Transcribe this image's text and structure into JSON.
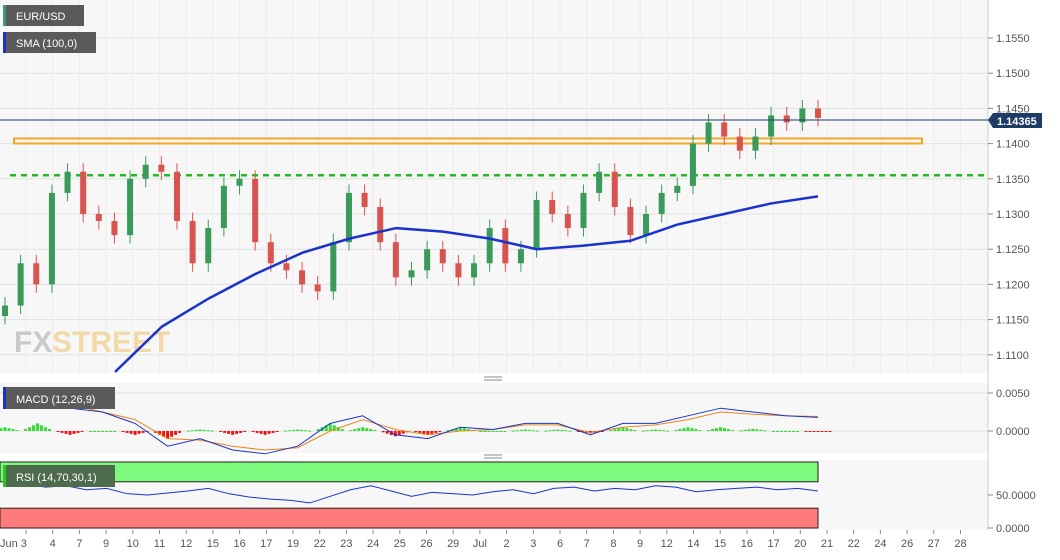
{
  "instrument": {
    "symbol": "EUR/USD",
    "current_price": "1.14365"
  },
  "indicators": {
    "sma_label": "SMA (100,0)",
    "macd_label": "MACD (12,26,9)",
    "rsi_label": "RSI (14,70,30,1)"
  },
  "watermark": {
    "text_fx": "FX",
    "text_street": "STREET"
  },
  "colors": {
    "candle_up": "#3a9a5a",
    "candle_down": "#d9534f",
    "sma": "#1a33cc",
    "resistance": "#f5a623",
    "support": "#22bb22",
    "macd_line": "#1a33cc",
    "signal_line": "#e8891c",
    "hist_pos": "#33dd33",
    "hist_neg": "#ee1111",
    "rsi_line": "#1a33cc",
    "rsi_overbought": "#7dfa7d",
    "rsi_oversold": "#ff7b7b",
    "price_tag": "#1e3a66"
  },
  "chart_data": [
    {
      "type": "candlestick",
      "pane": "price",
      "ylim": [
        1.1075,
        1.159
      ],
      "y_ticks": [
        "1.1550",
        "1.1500",
        "1.1450",
        "1.1400",
        "1.1350",
        "1.1300",
        "1.1250",
        "1.1200",
        "1.1150",
        "1.1100"
      ],
      "x_ticks": [
        "Jun 3",
        "4",
        "7",
        "9",
        "10",
        "11",
        "12",
        "15",
        "16",
        "17",
        "19",
        "22",
        "23",
        "24",
        "25",
        "26",
        "29",
        "Jul",
        "2",
        "3",
        "6",
        "7",
        "8",
        "9",
        "12",
        "14",
        "15",
        "16",
        "17",
        "20",
        "21",
        "22",
        "24",
        "26",
        "27",
        "28"
      ],
      "closes": [
        1.117,
        1.123,
        1.12,
        1.133,
        1.136,
        1.13,
        1.129,
        1.127,
        1.135,
        1.137,
        1.136,
        1.129,
        1.123,
        1.128,
        1.134,
        1.135,
        1.126,
        1.123,
        1.122,
        1.12,
        1.119,
        1.126,
        1.133,
        1.131,
        1.126,
        1.121,
        1.122,
        1.125,
        1.123,
        1.121,
        1.123,
        1.128,
        1.123,
        1.125,
        1.132,
        1.13,
        1.128,
        1.133,
        1.136,
        1.131,
        1.127,
        1.13,
        1.133,
        1.134,
        1.14,
        1.143,
        1.141,
        1.139,
        1.141,
        1.144,
        1.143,
        1.145,
        1.14365
      ],
      "sma_100": [
        1.1075,
        1.114,
        1.118,
        1.1215,
        1.1245,
        1.1265,
        1.128,
        1.1275,
        1.1265,
        1.125,
        1.1255,
        1.1262,
        1.1285,
        1.13,
        1.1315,
        1.1325
      ],
      "resistance_level": 1.1403,
      "support_level": 1.1355,
      "last_price": 1.14365
    },
    {
      "type": "line",
      "pane": "macd",
      "ylim": [
        -0.0028,
        0.0062
      ],
      "y_ticks": [
        "0.0050",
        "0.0000"
      ],
      "macd": [
        0.004,
        0.0055,
        0.003,
        0.0025,
        0.001,
        -0.002,
        -0.001,
        -0.0025,
        -0.003,
        -0.002,
        0.001,
        0.002,
        -0.0005,
        -0.001,
        0.0005,
        0.0002,
        0.001,
        0.001,
        -0.0005,
        0.001,
        0.001,
        0.002,
        0.003,
        0.0025,
        0.002,
        0.0018
      ],
      "signal": [
        0.0035,
        0.0045,
        0.0035,
        0.0025,
        0.0015,
        -0.001,
        -0.0012,
        -0.002,
        -0.0025,
        -0.0022,
        0.0,
        0.0015,
        0.0002,
        -0.0005,
        0.0,
        0.0002,
        0.0008,
        0.0008,
        -0.0002,
        0.0005,
        0.0008,
        0.0015,
        0.0025,
        0.0022,
        0.002,
        0.0019
      ],
      "histogram": [
        0.0005,
        0.001,
        -0.0005,
        0.0,
        -0.0005,
        -0.001,
        0.0002,
        -0.0005,
        -0.0005,
        0.0002,
        0.001,
        0.0005,
        -0.0007,
        -0.0005,
        0.0005,
        0.0,
        0.0002,
        0.0002,
        -0.0003,
        0.0005,
        0.0002,
        0.0005,
        0.0005,
        0.0003,
        0.0,
        -0.0001
      ]
    },
    {
      "type": "line",
      "pane": "rsi",
      "ylim": [
        0,
        100
      ],
      "y_ticks": [
        "50.0000",
        "0.0000"
      ],
      "overbought": 70,
      "oversold": 30,
      "rsi": [
        68,
        66,
        62,
        64,
        58,
        60,
        52,
        50,
        53,
        56,
        60,
        52,
        47,
        44,
        42,
        38,
        48,
        58,
        64,
        56,
        48,
        54,
        52,
        50,
        55,
        58,
        52,
        60,
        62,
        56,
        60,
        58,
        64,
        62,
        55,
        58,
        60,
        62,
        58,
        60,
        56
      ]
    }
  ]
}
